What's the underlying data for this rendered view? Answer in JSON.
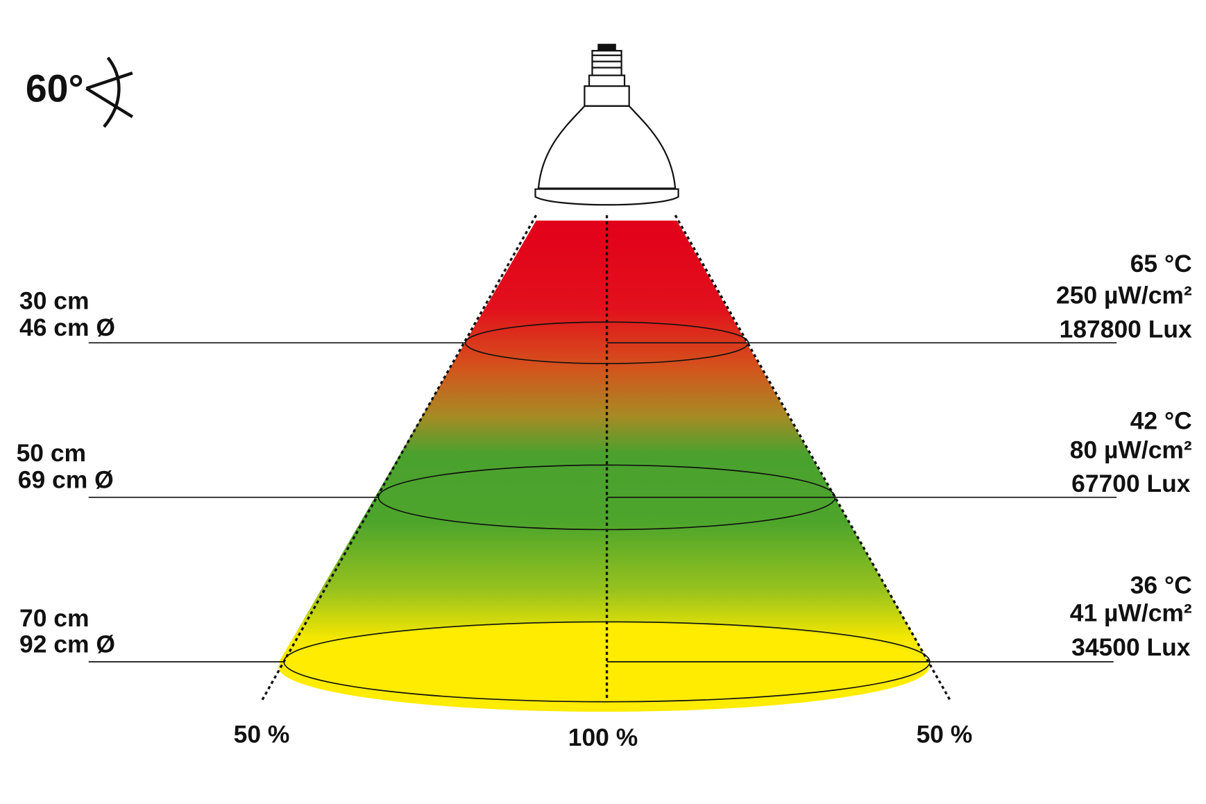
{
  "beam_angle": "60°",
  "levels": [
    {
      "distance": "30 cm",
      "diameter": "46 cm Ø",
      "temperature": "65 °C",
      "irradiance": "250 µW/cm²",
      "illuminance": "187800 Lux"
    },
    {
      "distance": "50 cm",
      "diameter": "69 cm Ø",
      "temperature": "42 °C",
      "irradiance": "80 µW/cm²",
      "illuminance": "67700 Lux"
    },
    {
      "distance": "70 cm",
      "diameter": "92 cm Ø",
      "temperature": "36 °C",
      "irradiance": "41 µW/cm²",
      "illuminance": "34500 Lux"
    }
  ],
  "intensity_labels": {
    "left": "50 %",
    "center": "100 %",
    "right": "50 %"
  }
}
